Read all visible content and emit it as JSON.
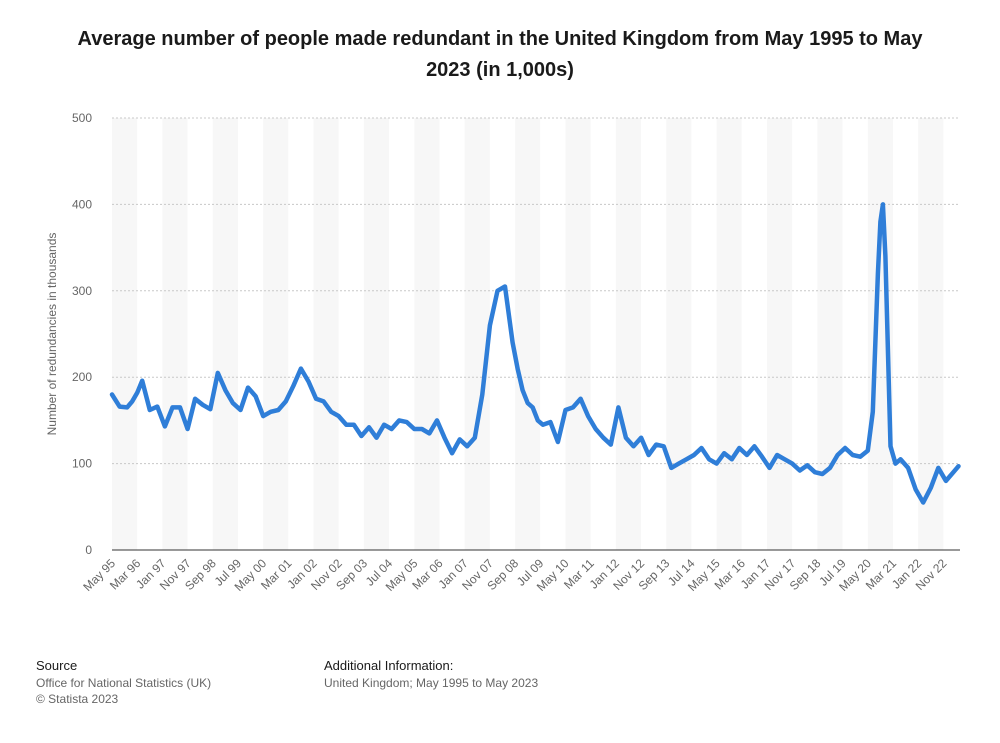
{
  "chart_data": {
    "type": "line",
    "title": "Average number of people made redundant in the United Kingdom from May 1995 to May 2023 (in 1,000s)",
    "ylabel": "Number of redundancies in thousands",
    "xlabel": "",
    "ylim": [
      0,
      500
    ],
    "yticks": [
      0,
      100,
      200,
      300,
      400,
      500
    ],
    "grid": true,
    "line_color": "#2f7ed8",
    "x_tick_labels": [
      "May 95",
      "Mar 96",
      "Jan 97",
      "Nov 97",
      "Sep 98",
      "Jul 99",
      "May 00",
      "Mar 01",
      "Jan 02",
      "Nov 02",
      "Sep 03",
      "Jul 04",
      "May 05",
      "Mar 06",
      "Jan 07",
      "Nov 07",
      "Sep 08",
      "Jul 09",
      "May 10",
      "Mar 11",
      "Jan 12",
      "Nov 12",
      "Sep 13",
      "Jul 14",
      "May 15",
      "Mar 16",
      "Jan 17",
      "Nov 17",
      "Sep 18",
      "Jul 19",
      "May 20",
      "Mar 21",
      "Jan 22",
      "Nov 22"
    ],
    "series": [
      {
        "x": [
          "1995-05",
          "1995-08",
          "1995-11",
          "1996-01",
          "1996-03",
          "1996-05",
          "1996-08",
          "1996-11",
          "1997-02",
          "1997-05",
          "1997-08",
          "1997-11",
          "1998-02",
          "1998-05",
          "1998-08",
          "1998-11",
          "1999-02",
          "1999-05",
          "1999-08",
          "1999-11",
          "2000-02",
          "2000-05",
          "2000-08",
          "2000-11",
          "2001-02",
          "2001-05",
          "2001-08",
          "2001-11",
          "2002-02",
          "2002-05",
          "2002-08",
          "2002-11",
          "2003-02",
          "2003-05",
          "2003-08",
          "2003-11",
          "2004-02",
          "2004-05",
          "2004-08",
          "2004-11",
          "2005-02",
          "2005-05",
          "2005-08",
          "2005-11",
          "2006-02",
          "2006-05",
          "2006-08",
          "2006-11",
          "2007-02",
          "2007-05",
          "2007-08",
          "2007-11",
          "2008-02",
          "2008-05",
          "2008-08",
          "2008-10",
          "2008-12",
          "2009-02",
          "2009-04",
          "2009-06",
          "2009-08",
          "2009-11",
          "2010-02",
          "2010-05",
          "2010-08",
          "2010-11",
          "2011-02",
          "2011-05",
          "2011-08",
          "2011-11",
          "2012-02",
          "2012-05",
          "2012-08",
          "2012-11",
          "2013-02",
          "2013-05",
          "2013-08",
          "2013-11",
          "2014-02",
          "2014-05",
          "2014-08",
          "2014-11",
          "2015-02",
          "2015-05",
          "2015-08",
          "2015-11",
          "2016-02",
          "2016-05",
          "2016-08",
          "2016-11",
          "2017-02",
          "2017-05",
          "2017-08",
          "2017-11",
          "2018-02",
          "2018-05",
          "2018-08",
          "2018-11",
          "2019-02",
          "2019-05",
          "2019-08",
          "2019-11",
          "2020-02",
          "2020-05",
          "2020-07",
          "2020-09",
          "2020-10",
          "2020-11",
          "2020-12",
          "2021-02",
          "2021-04",
          "2021-06",
          "2021-09",
          "2021-12",
          "2022-03",
          "2022-06",
          "2022-09",
          "2022-12",
          "2023-03",
          "2023-05"
        ],
        "values": [
          180,
          166,
          165,
          172,
          182,
          196,
          162,
          166,
          143,
          165,
          165,
          140,
          175,
          168,
          163,
          205,
          185,
          170,
          162,
          188,
          178,
          155,
          160,
          162,
          172,
          190,
          210,
          195,
          175,
          172,
          160,
          155,
          145,
          145,
          132,
          142,
          130,
          145,
          140,
          150,
          148,
          140,
          140,
          135,
          150,
          130,
          112,
          128,
          120,
          130,
          180,
          260,
          300,
          305,
          240,
          210,
          185,
          170,
          165,
          150,
          145,
          148,
          125,
          162,
          165,
          175,
          155,
          140,
          130,
          122,
          165,
          130,
          120,
          130,
          110,
          122,
          120,
          95,
          100,
          105,
          110,
          118,
          105,
          100,
          112,
          105,
          118,
          110,
          120,
          108,
          95,
          110,
          105,
          100,
          92,
          98,
          90,
          88,
          95,
          110,
          118,
          110,
          108,
          115,
          160,
          320,
          380,
          400,
          340,
          120,
          100,
          105,
          95,
          70,
          55,
          72,
          95,
          80,
          90,
          97
        ]
      }
    ]
  },
  "footer": {
    "source_heading": "Source",
    "source_line1": "Office for National Statistics (UK)",
    "source_line2": "© Statista 2023",
    "info_heading": "Additional Information:",
    "info_line1": "United Kingdom; May 1995 to May 2023"
  }
}
